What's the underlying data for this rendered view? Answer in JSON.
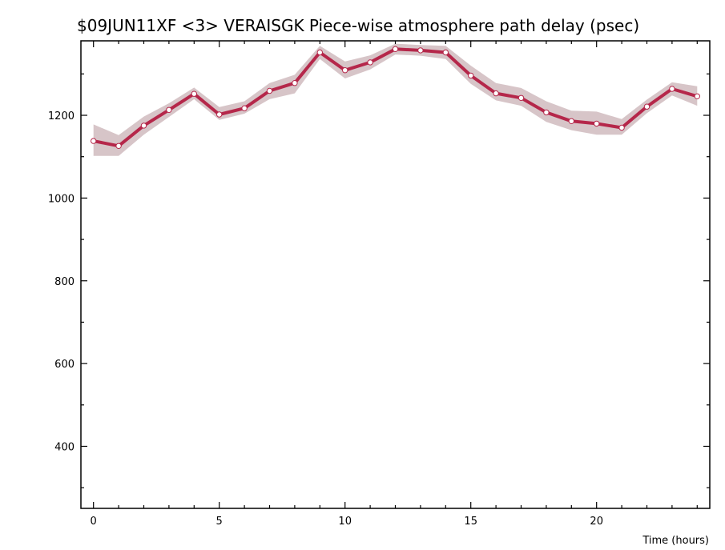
{
  "chart_data": {
    "type": "line",
    "title": "$09JUN11XF <3>  VERAISGK  Piece-wise atmosphere path delay (psec)",
    "xlabel": "Time (hours)",
    "ylabel": "",
    "xlim": [
      -0.5,
      24.5
    ],
    "ylim": [
      250,
      1380
    ],
    "x_ticks": [
      0,
      5,
      10,
      15,
      20
    ],
    "y_ticks": [
      400,
      600,
      800,
      1000,
      1200
    ],
    "x_tick_labels": [
      "0",
      "5",
      "10",
      "15",
      "20"
    ],
    "y_tick_labels": [
      "400",
      "600",
      "800",
      "1000",
      "1200"
    ],
    "grid": false,
    "colors": {
      "line": "#b5274a",
      "band": "#d7c5c8",
      "marker_fill": "#ffffff"
    },
    "series": [
      {
        "x": [
          0,
          1,
          2,
          3,
          4,
          5,
          6,
          7,
          8,
          9,
          10,
          11,
          12,
          13,
          14,
          15,
          16,
          17,
          18,
          19,
          20,
          21,
          22,
          23,
          24
        ],
        "values": [
          1138,
          1126,
          1175,
          1213,
          1252,
          1202,
          1217,
          1259,
          1278,
          1352,
          1309,
          1328,
          1360,
          1357,
          1352,
          1296,
          1253,
          1242,
          1207,
          1186,
          1180,
          1170,
          1221,
          1264,
          1246
        ],
        "upper": [
          1178,
          1152,
          1197,
          1229,
          1267,
          1220,
          1234,
          1278,
          1298,
          1368,
          1330,
          1345,
          1373,
          1370,
          1368,
          1320,
          1278,
          1266,
          1234,
          1211,
          1209,
          1191,
          1238,
          1280,
          1270
        ],
        "lower": [
          1102,
          1102,
          1153,
          1196,
          1239,
          1189,
          1204,
          1239,
          1253,
          1336,
          1289,
          1311,
          1347,
          1344,
          1336,
          1276,
          1236,
          1223,
          1184,
          1164,
          1153,
          1153,
          1205,
          1248,
          1223
        ]
      }
    ]
  }
}
